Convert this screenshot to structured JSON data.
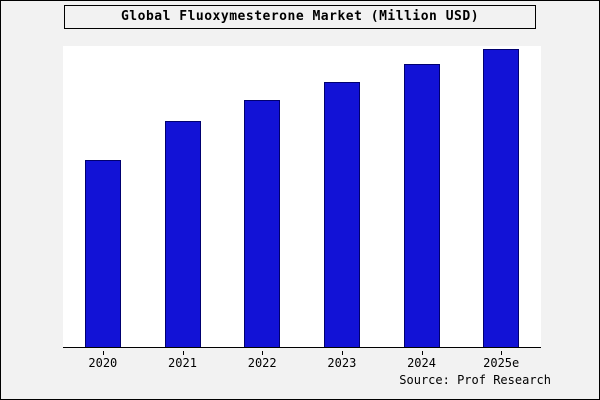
{
  "title": "Global Fluoxymesterone Market (Million USD)",
  "source": "Source: Prof Research",
  "colors": {
    "bar_fill": "#1212d6",
    "bar_border": "#000070",
    "page_background": "#f2f2f2",
    "plot_background": "#ffffff",
    "axis": "#000000"
  },
  "chart_data": {
    "type": "bar",
    "title": "Global Fluoxymesterone Market (Million USD)",
    "categories": [
      "2020",
      "2021",
      "2022",
      "2023",
      "2024",
      "2025e"
    ],
    "values": [
      62,
      75,
      82,
      88,
      94,
      99
    ],
    "xlabel": "",
    "ylabel": "",
    "ylim": [
      0,
      100
    ],
    "grid": false,
    "legend": false,
    "value_labels_shown": false,
    "y_axis_labels_shown": false,
    "bar_color": "#1212d6"
  }
}
